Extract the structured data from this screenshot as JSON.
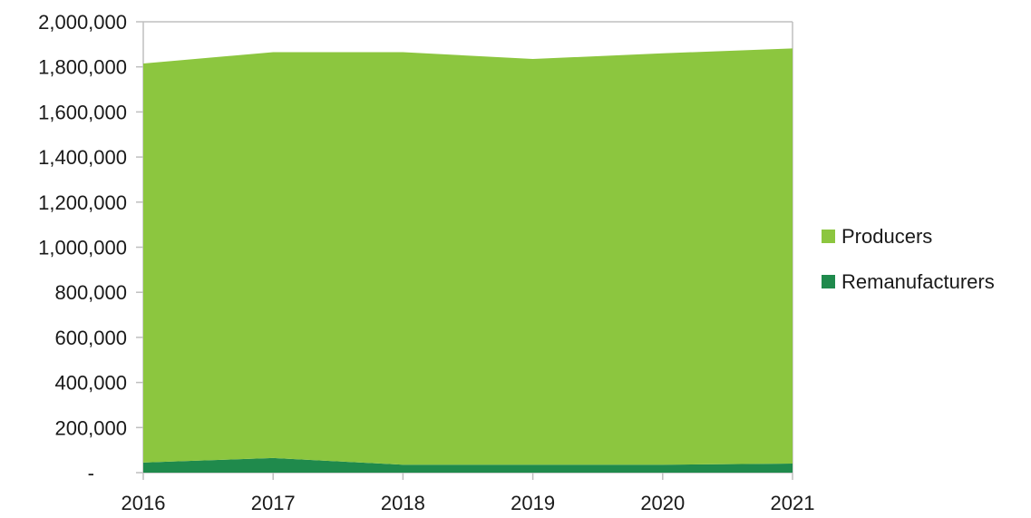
{
  "chart_data": {
    "type": "area",
    "stacked": true,
    "title": "",
    "xlabel": "",
    "ylabel": "",
    "x": [
      "2016",
      "2017",
      "2018",
      "2019",
      "2020",
      "2021"
    ],
    "ylim": [
      0,
      2000000
    ],
    "yticks": [
      {
        "value": 0,
        "label": "-"
      },
      {
        "value": 200000,
        "label": "200,000"
      },
      {
        "value": 400000,
        "label": "400,000"
      },
      {
        "value": 600000,
        "label": "600,000"
      },
      {
        "value": 800000,
        "label": "800,000"
      },
      {
        "value": 1000000,
        "label": "1,000,000"
      },
      {
        "value": 1200000,
        "label": "1,200,000"
      },
      {
        "value": 1400000,
        "label": "1,400,000"
      },
      {
        "value": 1600000,
        "label": "1,600,000"
      },
      {
        "value": 1800000,
        "label": "1,800,000"
      },
      {
        "value": 2000000,
        "label": "2,000,000"
      }
    ],
    "grid": false,
    "legend_position": "right",
    "series": [
      {
        "name": "Remanufacturers",
        "color": "#1f8a4c",
        "values": [
          45000,
          65000,
          35000,
          35000,
          35000,
          40000
        ]
      },
      {
        "name": "Producers",
        "color": "#8cc63f",
        "values": [
          1770000,
          1800000,
          1830000,
          1800000,
          1825000,
          1842000
        ]
      }
    ],
    "legend": [
      {
        "name": "Producers",
        "color": "#8cc63f"
      },
      {
        "name": "Remanufacturers",
        "color": "#1f8a4c"
      }
    ]
  }
}
